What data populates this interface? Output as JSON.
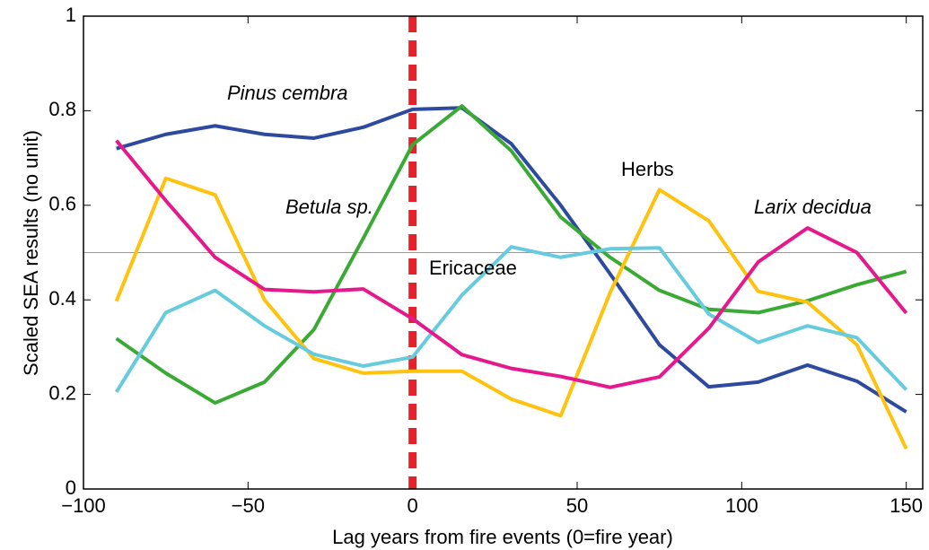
{
  "chart_data": {
    "type": "line",
    "x_label": "Lag years from fire events (0=fire year)",
    "y_label": "Scaled SEA results (no unit)",
    "x": [
      -90,
      -75,
      -60,
      -45,
      -30,
      -15,
      0,
      15,
      30,
      45,
      60,
      75,
      90,
      105,
      120,
      135,
      150
    ],
    "series": [
      {
        "name": "Pinus cembra",
        "color": "#2e4a9e",
        "label_style": "italic",
        "values": [
          0.72,
          0.75,
          0.768,
          0.75,
          0.742,
          0.765,
          0.803,
          0.806,
          0.73,
          0.6,
          0.455,
          0.305,
          0.216,
          0.226,
          0.262,
          0.228,
          0.163
        ]
      },
      {
        "name": "Betula sp.",
        "color": "#3aaa35",
        "label_style": "italic",
        "values": [
          0.318,
          0.245,
          0.182,
          0.226,
          0.337,
          0.53,
          0.728,
          0.81,
          0.715,
          0.575,
          0.49,
          0.42,
          0.38,
          0.373,
          0.398,
          0.432,
          0.46
        ]
      },
      {
        "name": "Herbs",
        "color": "#ffc20e",
        "label_style": "normal",
        "values": [
          0.397,
          0.657,
          0.622,
          0.4,
          0.276,
          0.245,
          0.249,
          0.249,
          0.19,
          0.155,
          0.415,
          0.633,
          0.567,
          0.418,
          0.395,
          0.305,
          0.085
        ]
      },
      {
        "name": "Ericaceae",
        "color": "#66ccdd",
        "label_style": "normal",
        "values": [
          0.205,
          0.373,
          0.42,
          0.345,
          0.285,
          0.26,
          0.279,
          0.41,
          0.512,
          0.49,
          0.508,
          0.51,
          0.37,
          0.31,
          0.345,
          0.32,
          0.21
        ]
      },
      {
        "name": "Larix decidua",
        "color": "#e6198c",
        "label_style": "italic",
        "values": [
          0.737,
          0.61,
          0.49,
          0.422,
          0.417,
          0.423,
          0.36,
          0.284,
          0.255,
          0.238,
          0.215,
          0.237,
          0.34,
          0.48,
          0.552,
          0.5,
          0.372
        ]
      }
    ],
    "reference_line_y": 0.5,
    "fire_line_x": 0,
    "fire_line_color": "#e8202a",
    "xlim": [
      -100,
      155
    ],
    "ylim": [
      0,
      1
    ],
    "xticks": [
      {
        "value": -100,
        "label": "−100"
      },
      {
        "value": -50,
        "label": "−50"
      },
      0,
      50,
      100,
      150
    ],
    "yticks": [
      0,
      0.2,
      0.4,
      0.6,
      0.8,
      1
    ]
  }
}
